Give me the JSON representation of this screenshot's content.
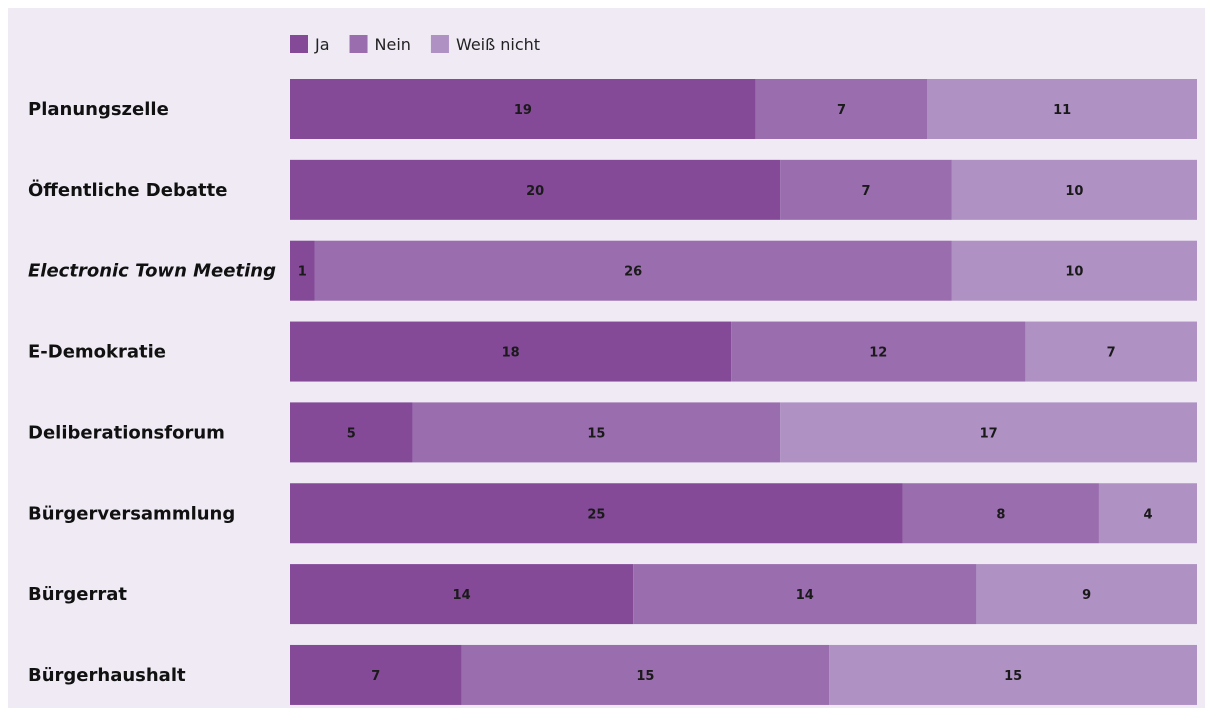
{
  "chart_data": {
    "type": "bar",
    "orientation": "horizontal",
    "stacked": true,
    "title": "",
    "xlabel": "",
    "ylabel": "",
    "xlim": [
      0,
      37
    ],
    "grid": false,
    "legend_position": "top-left",
    "categories": [
      "Planungszelle",
      "Öffentliche Debatte",
      "Electronic Town Meeting",
      "E-Demokratie",
      "Deliberationsforum",
      "Bürgerversammlung",
      "Bürgerrat",
      "Bürgerhaushalt"
    ],
    "italic_categories": [
      "Electronic Town Meeting"
    ],
    "series": [
      {
        "name": "Ja",
        "color": "#844a98",
        "values": [
          19,
          20,
          1,
          18,
          5,
          25,
          14,
          7
        ]
      },
      {
        "name": "Nein",
        "color": "#9a6dae",
        "values": [
          7,
          7,
          26,
          12,
          15,
          8,
          14,
          15
        ]
      },
      {
        "name": "Weiß nicht",
        "color": "#af91c4",
        "values": [
          11,
          10,
          10,
          7,
          17,
          4,
          9,
          15
        ]
      }
    ]
  }
}
